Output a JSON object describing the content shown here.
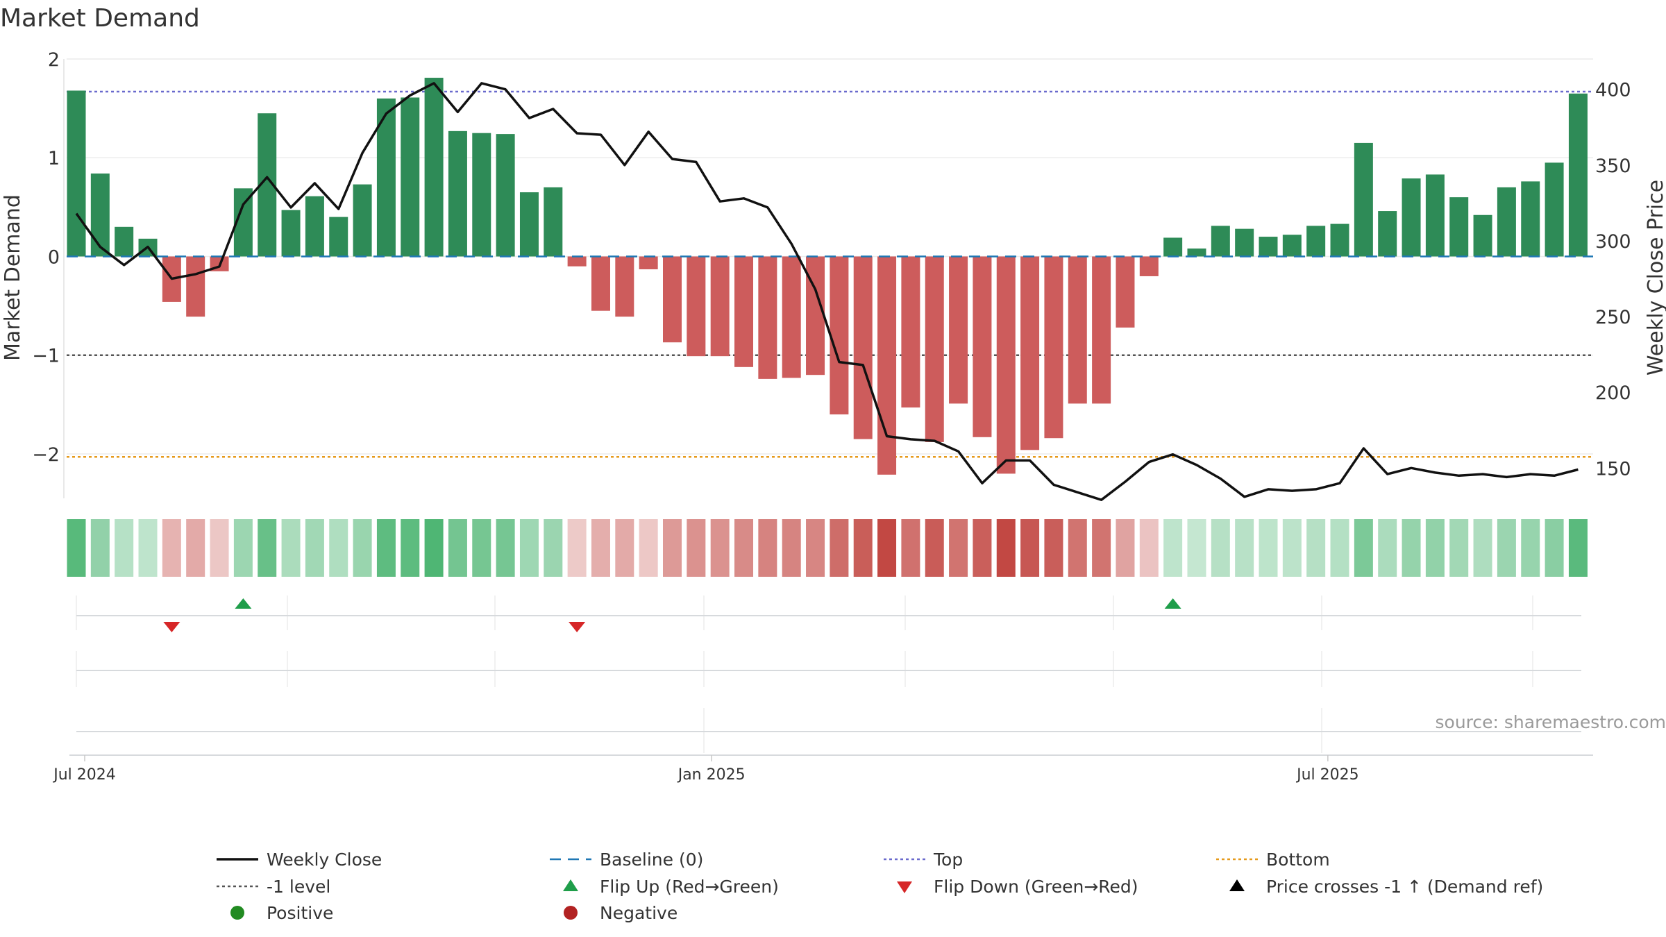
{
  "chart_data": {
    "type": "bar",
    "title": "Market Demand",
    "ylabel": "Market Demand",
    "y2label": "Weekly Close Price",
    "ylim": [
      -2.45,
      2.0
    ],
    "y2lim": [
      130,
      420
    ],
    "yticks": [
      {
        "v": 2,
        "label": "2"
      },
      {
        "v": 1,
        "label": "1"
      },
      {
        "v": 0,
        "label": "0"
      },
      {
        "v": -1,
        "label": "−1"
      },
      {
        "v": -2,
        "label": "−2"
      }
    ],
    "y2ticks": [
      {
        "v": 400,
        "label": "400"
      },
      {
        "v": 350,
        "label": "350"
      },
      {
        "v": 300,
        "label": "300"
      },
      {
        "v": 250,
        "label": "250"
      },
      {
        "v": 200,
        "label": "200"
      },
      {
        "v": 150,
        "label": "150"
      }
    ],
    "xticks": [
      {
        "i": 0.35,
        "label": "Jul 2024"
      },
      {
        "i": 26.65,
        "label": "Jan 2025"
      },
      {
        "i": 52.5,
        "label": "Jul 2025"
      }
    ],
    "levels": {
      "baseline": 0,
      "minus_one": -1,
      "top": 1.67,
      "bottom": -2.03
    },
    "demand": [
      1.68,
      0.84,
      0.3,
      0.18,
      -0.46,
      -0.61,
      -0.15,
      0.69,
      1.45,
      0.47,
      0.61,
      0.4,
      0.73,
      1.6,
      1.61,
      1.81,
      1.27,
      1.25,
      1.24,
      0.65,
      0.7,
      -0.1,
      -0.55,
      -0.61,
      -0.13,
      -0.87,
      -1.01,
      -1.01,
      -1.12,
      -1.24,
      -1.23,
      -1.2,
      -1.6,
      -1.85,
      -2.21,
      -1.53,
      -1.88,
      -1.49,
      -1.83,
      -2.2,
      -1.96,
      -1.84,
      -1.49,
      -1.49,
      -0.72,
      -0.2,
      0.19,
      0.08,
      0.31,
      0.28,
      0.2,
      0.22,
      0.31,
      0.33,
      1.15,
      0.46,
      0.79,
      0.83,
      0.6,
      0.42,
      0.7,
      0.76,
      0.95,
      1.65
    ],
    "close": [
      318,
      296,
      284,
      296,
      275,
      278,
      283,
      324,
      342,
      322,
      338,
      321,
      358,
      384,
      396,
      404,
      385,
      404,
      400,
      381,
      387,
      371,
      370,
      350,
      372,
      354,
      352,
      326,
      328,
      322,
      298,
      268,
      220,
      218,
      171,
      169,
      168,
      161,
      140,
      155,
      155,
      139,
      134,
      129,
      141,
      154,
      159,
      152,
      143,
      131,
      136,
      135,
      136,
      140,
      163,
      146,
      150,
      147,
      145,
      146,
      144,
      146,
      145,
      149
    ],
    "flips_up": [
      7,
      46
    ],
    "flips_down": [
      4,
      21
    ],
    "legend": [
      {
        "label": "Weekly Close",
        "key": "close"
      },
      {
        "label": "Baseline (0)",
        "key": "baseline"
      },
      {
        "label": "Top",
        "key": "top"
      },
      {
        "label": "Bottom",
        "key": "bottom"
      },
      {
        "label": "-1 level",
        "key": "minus1"
      },
      {
        "label": "Flip Up (Red→Green)",
        "key": "flipup"
      },
      {
        "label": "Flip Down (Green→Red)",
        "key": "flipdown"
      },
      {
        "label": "Price crosses -1 ↑ (Demand ref)",
        "key": "cross"
      },
      {
        "label": "Positive",
        "key": "positive"
      },
      {
        "label": "Negative",
        "key": "negative"
      }
    ],
    "source": "source: sharemaestro.com"
  },
  "colors": {
    "positive_bar": "#2e8b57",
    "negative_bar": "#cd5c5c",
    "close_line": "#111111",
    "baseline": "#1f77b4",
    "top": "#6a6acd",
    "bottom": "#e69a1c",
    "minus_one": "#555555",
    "flip_up": "#1f9e4a",
    "flip_down": "#d62728",
    "positive_marker": "#228b22",
    "negative_marker": "#b22222",
    "cross_marker": "#000000"
  }
}
